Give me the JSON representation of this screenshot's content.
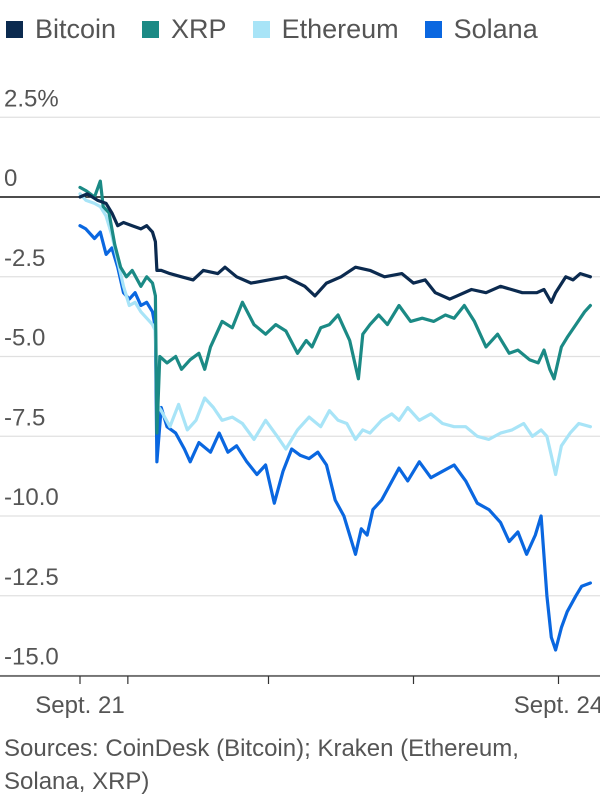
{
  "chart_data": {
    "type": "line",
    "title": "",
    "xlabel": "",
    "ylabel": "",
    "ylim": [
      -15.9,
      3.0
    ],
    "x_ticks": [
      {
        "t": 0.0,
        "label": "Sept. 21"
      },
      {
        "t": 0.33,
        "label": ""
      },
      {
        "t": 1.3,
        "label": ""
      },
      {
        "t": 2.3,
        "label": ""
      },
      {
        "t": 3.3,
        "label": "Sept. 24"
      }
    ],
    "y_ticks": [
      {
        "value": 2.5,
        "label": "2.5%"
      },
      {
        "value": 0,
        "label": "0"
      },
      {
        "value": -2.5,
        "label": "-2.5"
      },
      {
        "value": -5.0,
        "label": "-5.0"
      },
      {
        "value": -7.5,
        "label": "-7.5"
      },
      {
        "value": -10.0,
        "label": "-10.0"
      },
      {
        "value": -12.5,
        "label": "-12.5"
      },
      {
        "value": -15.0,
        "label": "-15.0"
      }
    ],
    "x_range": [
      0.0,
      3.53
    ],
    "grid": true,
    "legend_position": "top",
    "series": [
      {
        "name": "Bitcoin",
        "color": "#0b2a4f",
        "points": [
          [
            0,
            0
          ],
          [
            0.05,
            0.1
          ],
          [
            0.12,
            -0.1
          ],
          [
            0.18,
            -0.2
          ],
          [
            0.22,
            -0.5
          ],
          [
            0.26,
            -0.9
          ],
          [
            0.3,
            -0.8
          ],
          [
            0.36,
            -0.9
          ],
          [
            0.42,
            -1.0
          ],
          [
            0.46,
            -0.9
          ],
          [
            0.48,
            -1.0
          ],
          [
            0.5,
            -1.1
          ],
          [
            0.52,
            -1.4
          ],
          [
            0.53,
            -2.3
          ],
          [
            0.56,
            -2.3
          ],
          [
            0.62,
            -2.4
          ],
          [
            0.7,
            -2.5
          ],
          [
            0.78,
            -2.6
          ],
          [
            0.85,
            -2.3
          ],
          [
            0.95,
            -2.4
          ],
          [
            1.0,
            -2.2
          ],
          [
            1.08,
            -2.5
          ],
          [
            1.18,
            -2.7
          ],
          [
            1.3,
            -2.6
          ],
          [
            1.42,
            -2.5
          ],
          [
            1.55,
            -2.8
          ],
          [
            1.62,
            -3.1
          ],
          [
            1.7,
            -2.7
          ],
          [
            1.8,
            -2.5
          ],
          [
            1.9,
            -2.2
          ],
          [
            2.0,
            -2.3
          ],
          [
            2.1,
            -2.5
          ],
          [
            2.22,
            -2.4
          ],
          [
            2.3,
            -2.7
          ],
          [
            2.38,
            -2.6
          ],
          [
            2.45,
            -3.0
          ],
          [
            2.55,
            -3.2
          ],
          [
            2.6,
            -3.1
          ],
          [
            2.7,
            -2.9
          ],
          [
            2.8,
            -3.0
          ],
          [
            2.9,
            -2.8
          ],
          [
            3.05,
            -3.0
          ],
          [
            3.15,
            -3.0
          ],
          [
            3.2,
            -2.9
          ],
          [
            3.25,
            -3.3
          ],
          [
            3.28,
            -3.0
          ],
          [
            3.35,
            -2.5
          ],
          [
            3.4,
            -2.6
          ],
          [
            3.45,
            -2.4
          ],
          [
            3.52,
            -2.5
          ]
        ]
      },
      {
        "name": "XRP",
        "color": "#1b8a85",
        "points": [
          [
            0,
            0.3
          ],
          [
            0.04,
            0.2
          ],
          [
            0.1,
            0.0
          ],
          [
            0.14,
            0.5
          ],
          [
            0.16,
            -0.3
          ],
          [
            0.2,
            -0.5
          ],
          [
            0.24,
            -1.5
          ],
          [
            0.28,
            -2.2
          ],
          [
            0.32,
            -2.5
          ],
          [
            0.36,
            -2.3
          ],
          [
            0.42,
            -2.8
          ],
          [
            0.46,
            -2.5
          ],
          [
            0.5,
            -2.7
          ],
          [
            0.52,
            -3.1
          ],
          [
            0.53,
            -7.4
          ],
          [
            0.55,
            -5.0
          ],
          [
            0.6,
            -5.2
          ],
          [
            0.66,
            -5.0
          ],
          [
            0.7,
            -5.4
          ],
          [
            0.76,
            -5.1
          ],
          [
            0.82,
            -4.9
          ],
          [
            0.86,
            -5.4
          ],
          [
            0.9,
            -4.7
          ],
          [
            0.98,
            -3.9
          ],
          [
            1.05,
            -4.1
          ],
          [
            1.12,
            -3.3
          ],
          [
            1.2,
            -4.0
          ],
          [
            1.28,
            -4.3
          ],
          [
            1.35,
            -4.0
          ],
          [
            1.42,
            -4.2
          ],
          [
            1.5,
            -4.9
          ],
          [
            1.56,
            -4.5
          ],
          [
            1.6,
            -4.7
          ],
          [
            1.66,
            -4.1
          ],
          [
            1.72,
            -4.0
          ],
          [
            1.78,
            -3.7
          ],
          [
            1.82,
            -4.1
          ],
          [
            1.86,
            -4.5
          ],
          [
            1.9,
            -5.3
          ],
          [
            1.92,
            -5.7
          ],
          [
            1.95,
            -4.3
          ],
          [
            2.0,
            -4.0
          ],
          [
            2.06,
            -3.7
          ],
          [
            2.12,
            -4.0
          ],
          [
            2.2,
            -3.4
          ],
          [
            2.28,
            -3.9
          ],
          [
            2.36,
            -3.8
          ],
          [
            2.44,
            -3.9
          ],
          [
            2.52,
            -3.7
          ],
          [
            2.58,
            -3.8
          ],
          [
            2.65,
            -3.4
          ],
          [
            2.72,
            -3.9
          ],
          [
            2.8,
            -4.7
          ],
          [
            2.88,
            -4.3
          ],
          [
            2.96,
            -4.9
          ],
          [
            3.02,
            -4.8
          ],
          [
            3.1,
            -5.1
          ],
          [
            3.16,
            -5.2
          ],
          [
            3.2,
            -4.8
          ],
          [
            3.24,
            -5.4
          ],
          [
            3.27,
            -5.7
          ],
          [
            3.32,
            -4.7
          ],
          [
            3.36,
            -4.4
          ],
          [
            3.42,
            -4.0
          ],
          [
            3.48,
            -3.6
          ],
          [
            3.52,
            -3.4
          ]
        ]
      },
      {
        "name": "Ethereum",
        "color": "#a8e4f7",
        "points": [
          [
            0,
            0.1
          ],
          [
            0.04,
            -0.1
          ],
          [
            0.1,
            -0.2
          ],
          [
            0.14,
            -0.3
          ],
          [
            0.18,
            -0.6
          ],
          [
            0.22,
            -1.2
          ],
          [
            0.26,
            -2.0
          ],
          [
            0.3,
            -2.8
          ],
          [
            0.34,
            -3.4
          ],
          [
            0.38,
            -3.3
          ],
          [
            0.42,
            -3.6
          ],
          [
            0.46,
            -3.8
          ],
          [
            0.5,
            -4.0
          ],
          [
            0.52,
            -4.2
          ],
          [
            0.53,
            -6.5
          ],
          [
            0.56,
            -6.7
          ],
          [
            0.62,
            -7.2
          ],
          [
            0.68,
            -6.5
          ],
          [
            0.74,
            -7.3
          ],
          [
            0.8,
            -7.0
          ],
          [
            0.86,
            -6.3
          ],
          [
            0.92,
            -6.6
          ],
          [
            0.98,
            -7.0
          ],
          [
            1.05,
            -6.9
          ],
          [
            1.12,
            -7.1
          ],
          [
            1.2,
            -7.6
          ],
          [
            1.28,
            -7.0
          ],
          [
            1.36,
            -7.5
          ],
          [
            1.42,
            -7.9
          ],
          [
            1.5,
            -7.3
          ],
          [
            1.58,
            -6.9
          ],
          [
            1.66,
            -7.2
          ],
          [
            1.72,
            -6.7
          ],
          [
            1.78,
            -7.0
          ],
          [
            1.84,
            -7.1
          ],
          [
            1.9,
            -7.6
          ],
          [
            1.95,
            -7.3
          ],
          [
            2.0,
            -7.4
          ],
          [
            2.08,
            -7.0
          ],
          [
            2.15,
            -6.8
          ],
          [
            2.2,
            -7.0
          ],
          [
            2.26,
            -6.6
          ],
          [
            2.34,
            -7.0
          ],
          [
            2.42,
            -6.8
          ],
          [
            2.5,
            -7.1
          ],
          [
            2.58,
            -7.2
          ],
          [
            2.66,
            -7.2
          ],
          [
            2.74,
            -7.5
          ],
          [
            2.82,
            -7.6
          ],
          [
            2.9,
            -7.4
          ],
          [
            2.98,
            -7.3
          ],
          [
            3.06,
            -7.1
          ],
          [
            3.12,
            -7.5
          ],
          [
            3.18,
            -7.3
          ],
          [
            3.22,
            -7.5
          ],
          [
            3.25,
            -8.1
          ],
          [
            3.28,
            -8.7
          ],
          [
            3.32,
            -7.8
          ],
          [
            3.38,
            -7.4
          ],
          [
            3.44,
            -7.1
          ],
          [
            3.52,
            -7.2
          ]
        ]
      },
      {
        "name": "Solana",
        "color": "#0a67e0",
        "points": [
          [
            0,
            -0.9
          ],
          [
            0.04,
            -1.0
          ],
          [
            0.1,
            -1.3
          ],
          [
            0.14,
            -1.1
          ],
          [
            0.18,
            -1.8
          ],
          [
            0.22,
            -1.6
          ],
          [
            0.26,
            -2.2
          ],
          [
            0.3,
            -3.0
          ],
          [
            0.34,
            -3.2
          ],
          [
            0.38,
            -3.0
          ],
          [
            0.42,
            -3.4
          ],
          [
            0.46,
            -3.3
          ],
          [
            0.5,
            -3.6
          ],
          [
            0.52,
            -4.1
          ],
          [
            0.53,
            -8.3
          ],
          [
            0.56,
            -6.6
          ],
          [
            0.6,
            -7.2
          ],
          [
            0.66,
            -7.4
          ],
          [
            0.72,
            -7.9
          ],
          [
            0.76,
            -8.3
          ],
          [
            0.82,
            -7.7
          ],
          [
            0.9,
            -8.0
          ],
          [
            0.96,
            -7.4
          ],
          [
            1.02,
            -8.0
          ],
          [
            1.08,
            -7.8
          ],
          [
            1.15,
            -8.3
          ],
          [
            1.22,
            -8.7
          ],
          [
            1.28,
            -8.4
          ],
          [
            1.34,
            -9.6
          ],
          [
            1.4,
            -8.6
          ],
          [
            1.46,
            -7.9
          ],
          [
            1.52,
            -8.1
          ],
          [
            1.58,
            -8.2
          ],
          [
            1.64,
            -8.0
          ],
          [
            1.7,
            -8.4
          ],
          [
            1.76,
            -9.5
          ],
          [
            1.82,
            -10.0
          ],
          [
            1.86,
            -10.6
          ],
          [
            1.9,
            -11.2
          ],
          [
            1.94,
            -10.4
          ],
          [
            1.98,
            -10.6
          ],
          [
            2.02,
            -9.8
          ],
          [
            2.08,
            -9.5
          ],
          [
            2.14,
            -9.0
          ],
          [
            2.2,
            -8.5
          ],
          [
            2.26,
            -8.9
          ],
          [
            2.34,
            -8.3
          ],
          [
            2.42,
            -8.8
          ],
          [
            2.5,
            -8.6
          ],
          [
            2.58,
            -8.4
          ],
          [
            2.66,
            -8.9
          ],
          [
            2.74,
            -9.6
          ],
          [
            2.82,
            -9.8
          ],
          [
            2.9,
            -10.2
          ],
          [
            2.96,
            -10.8
          ],
          [
            3.02,
            -10.5
          ],
          [
            3.08,
            -11.2
          ],
          [
            3.14,
            -10.6
          ],
          [
            3.18,
            -10.0
          ],
          [
            3.22,
            -12.5
          ],
          [
            3.25,
            -13.8
          ],
          [
            3.28,
            -14.2
          ],
          [
            3.32,
            -13.5
          ],
          [
            3.36,
            -13.0
          ],
          [
            3.42,
            -12.5
          ],
          [
            3.46,
            -12.2
          ],
          [
            3.52,
            -12.1
          ]
        ]
      }
    ]
  },
  "legend": {
    "items": [
      {
        "label": "Bitcoin",
        "color": "#0b2a4f"
      },
      {
        "label": "XRP",
        "color": "#1b8a85"
      },
      {
        "label": "Ethereum",
        "color": "#a8e4f7"
      },
      {
        "label": "Solana",
        "color": "#0a67e0"
      }
    ]
  },
  "source": "Sources: CoinDesk (Bitcoin); Kraken (Ethereum, Solana, XRP)",
  "colors": {
    "grid": "#e0e0e0",
    "zero_line": "#111111",
    "axis": "#333333",
    "text": "#555555"
  }
}
